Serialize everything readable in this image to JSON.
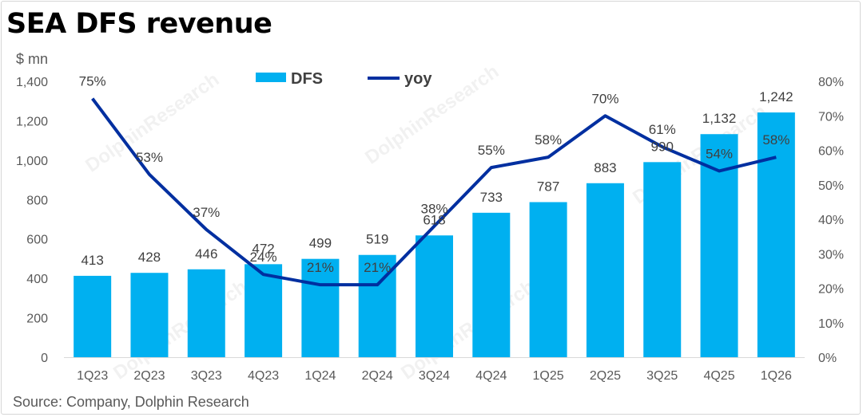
{
  "title": "SEA DFS revenue",
  "unit_label": "$ mn",
  "source": "Source: Company, Dolphin Research",
  "watermark": "DolphinResearch",
  "colors": {
    "bar": "#00b0f0",
    "line": "#002fa0",
    "text": "#404040",
    "axis": "#595959"
  },
  "chart_data": {
    "type": "bar",
    "categories": [
      "1Q23",
      "2Q23",
      "3Q23",
      "4Q23",
      "1Q24",
      "2Q24",
      "3Q24",
      "4Q24",
      "1Q25",
      "2Q25",
      "3Q25",
      "4Q25",
      "1Q26"
    ],
    "series": [
      {
        "name": "DFS",
        "type": "bar",
        "axis": "left",
        "values": [
          413,
          428,
          446,
          472,
          499,
          519,
          618,
          733,
          787,
          883,
          990,
          1132,
          1242
        ],
        "labels": [
          "413",
          "428",
          "446",
          "472",
          "499",
          "519",
          "618",
          "733",
          "787",
          "883",
          "990",
          "1,132",
          "1,242"
        ]
      },
      {
        "name": "yoy",
        "type": "line",
        "axis": "right",
        "values": [
          75,
          53,
          37,
          24,
          21,
          21,
          38,
          55,
          58,
          70,
          61,
          54,
          58
        ],
        "labels": [
          "75%",
          "53%",
          "37%",
          "24%",
          "21%",
          "21%",
          "38%",
          "55%",
          "58%",
          "70%",
          "61%",
          "54%",
          "58%"
        ]
      }
    ],
    "y_left": {
      "ylim": [
        0,
        1400
      ],
      "ticks": [
        "0",
        "200",
        "400",
        "600",
        "800",
        "1,000",
        "1,200",
        "1,400"
      ]
    },
    "y_right": {
      "ylim": [
        0,
        80
      ],
      "ticks": [
        "0%",
        "10%",
        "20%",
        "30%",
        "40%",
        "50%",
        "60%",
        "70%",
        "80%"
      ]
    },
    "legend": "top-center",
    "grid": false
  }
}
